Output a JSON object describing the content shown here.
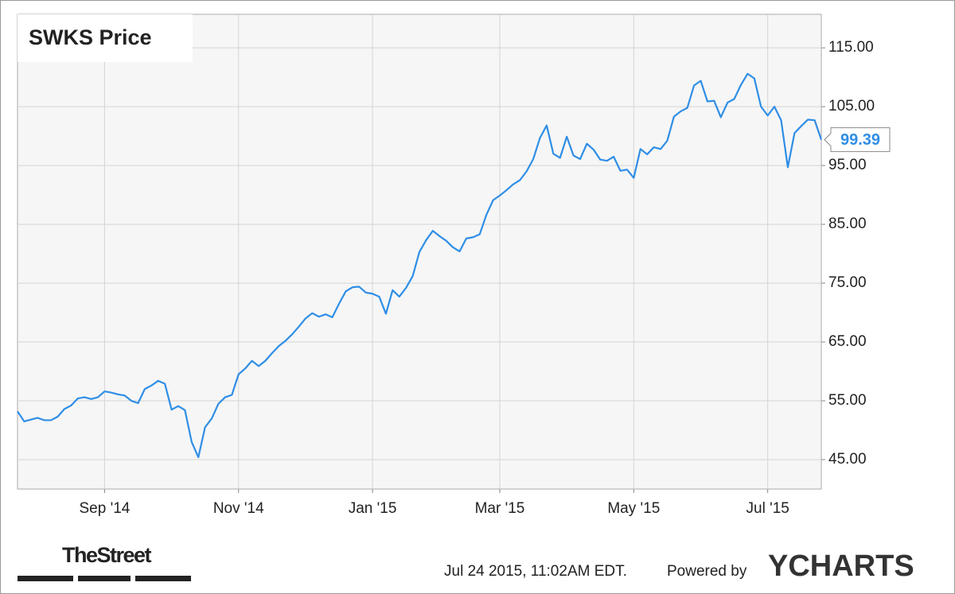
{
  "chart_data": {
    "type": "line",
    "title": "SWKS Price",
    "categories": [
      null,
      null,
      null,
      null,
      null,
      null,
      null,
      null,
      null,
      null,
      null,
      null,
      null,
      "Sep '14",
      null,
      null,
      null,
      null,
      null,
      null,
      null,
      null,
      null,
      null,
      null,
      null,
      null,
      null,
      null,
      null,
      null,
      null,
      null,
      "Nov '14",
      null,
      null,
      null,
      null,
      null,
      null,
      null,
      null,
      null,
      null,
      null,
      null,
      null,
      null,
      null,
      null,
      null,
      null,
      null,
      "Jan '15",
      null,
      null,
      null,
      null,
      null,
      null,
      null,
      null,
      null,
      null,
      null,
      null,
      null,
      null,
      null,
      null,
      null,
      null,
      "Mar '15",
      null,
      null,
      null,
      null,
      null,
      null,
      null,
      null,
      null,
      null,
      null,
      null,
      null,
      null,
      null,
      null,
      null,
      null,
      null,
      "May '15",
      null,
      null,
      null,
      null,
      null,
      null,
      null,
      null,
      null,
      null,
      null,
      null,
      null,
      null,
      null,
      null,
      null,
      null,
      null,
      "Jul '15",
      null,
      null,
      null,
      null,
      null,
      null,
      null,
      null
    ],
    "values": [
      53.2,
      51.5,
      51.8,
      52.1,
      51.7,
      51.7,
      52.3,
      53.6,
      54.2,
      55.4,
      55.6,
      55.3,
      55.6,
      56.6,
      56.4,
      56.1,
      55.9,
      55,
      54.6,
      57,
      57.6,
      58.4,
      57.9,
      53.5,
      54.1,
      53.4,
      48,
      45.4,
      50.5,
      52,
      54.5,
      55.6,
      56,
      59.5,
      60.5,
      61.8,
      60.9,
      61.8,
      63.1,
      64.3,
      65.2,
      66.3,
      67.6,
      69,
      69.9,
      69.3,
      69.7,
      69.2,
      71.5,
      73.6,
      74.3,
      74.4,
      73.4,
      73.2,
      72.7,
      69.8,
      73.8,
      72.7,
      74.2,
      76.2,
      80.3,
      82.3,
      83.9,
      83,
      82.2,
      81.1,
      80.4,
      82.6,
      82.8,
      83.3,
      86.6,
      89.1,
      89.9,
      90.8,
      91.8,
      92.5,
      94,
      96.1,
      99.7,
      101.8,
      97,
      96.3,
      99.9,
      96.7,
      96.1,
      98.7,
      97.7,
      96,
      95.8,
      96.5,
      94.1,
      94.3,
      92.9,
      97.8,
      96.9,
      98.1,
      97.8,
      99.2,
      103.3,
      104.2,
      104.8,
      108.6,
      109.4,
      105.9,
      106,
      103.2,
      105.7,
      106.3,
      108.7,
      110.6,
      109.8,
      105,
      103.5,
      105,
      102.7,
      94.7,
      100.5,
      101.7,
      102.8,
      102.7,
      99.39
    ],
    "color": "#2f8ee6",
    "ylim": [
      40,
      120.7
    ],
    "yticks": [
      {
        "value": 45,
        "label": "45.00"
      },
      {
        "value": 55,
        "label": "55.00"
      },
      {
        "value": 65,
        "label": "65.00"
      },
      {
        "value": 75,
        "label": "75.00"
      },
      {
        "value": 85,
        "label": "85.00"
      },
      {
        "value": 95,
        "label": "95.00"
      },
      {
        "value": 105,
        "label": "105.00"
      },
      {
        "value": 115,
        "label": "115.00"
      }
    ],
    "grid": true
  },
  "footer": {
    "brand": "TheStreet",
    "timestamp": "Jul 24 2015, 11:02AM EDT.",
    "powered": "Powered by",
    "logo": "YCHARTS"
  }
}
